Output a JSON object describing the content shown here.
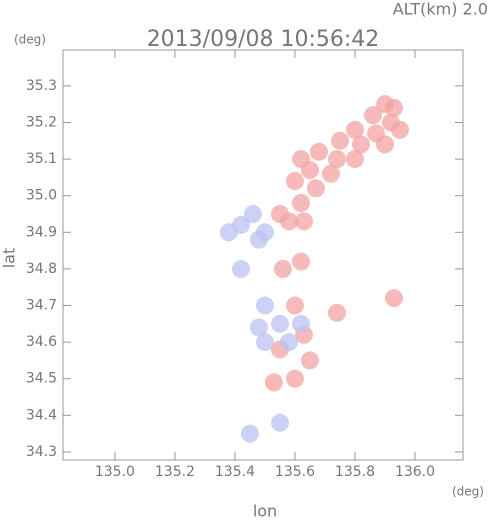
{
  "chart_data": {
    "type": "scatter",
    "title": "2013/09/08 10:56:42",
    "subtitle": "ALT(km) 2.0",
    "x_label": "lon",
    "y_label": "lat",
    "x_unit": "(deg)",
    "y_unit": "(deg)",
    "xlim": [
      134.827,
      136.16
    ],
    "ylim": [
      34.278,
      35.398
    ],
    "xticks": [
      {
        "value": 135,
        "label": "135.0"
      },
      135.2,
      135.4,
      135.6,
      135.8,
      {
        "value": 136,
        "label": "136.0"
      }
    ],
    "yticks": [
      34.3,
      34.4,
      34.5,
      34.6,
      34.7,
      34.8,
      34.9,
      {
        "value": 35,
        "label": "35.0"
      },
      35.1,
      35.2,
      35.3
    ],
    "series": [
      {
        "color": "#f3a3a3",
        "x": [
          135.9,
          135.93,
          135.86,
          135.92,
          135.8,
          135.87,
          135.95,
          135.75,
          135.82,
          135.9,
          135.68,
          135.74,
          135.8,
          135.62,
          135.65,
          135.72,
          135.6,
          135.67,
          135.62,
          135.58,
          135.63,
          135.55,
          135.74,
          135.93,
          135.56,
          135.62,
          135.6,
          135.63,
          135.55,
          135.6,
          135.53,
          135.65
        ],
        "values": [
          35.25,
          35.24,
          35.22,
          35.2,
          35.18,
          35.17,
          35.18,
          35.15,
          35.14,
          35.14,
          35.12,
          35.1,
          35.1,
          35.1,
          35.07,
          35.06,
          35.04,
          35.02,
          34.98,
          34.93,
          34.93,
          34.95,
          34.68,
          34.72,
          34.8,
          34.82,
          34.7,
          34.62,
          34.58,
          34.5,
          34.49,
          34.55
        ]
      },
      {
        "color": "#bcc2f2",
        "x": [
          135.42,
          135.46,
          135.5,
          135.38,
          135.48,
          135.42,
          135.5,
          135.48,
          135.55,
          135.58,
          135.5,
          135.62,
          135.45,
          135.55
        ],
        "values": [
          34.92,
          34.95,
          34.9,
          34.9,
          34.88,
          34.8,
          34.7,
          34.64,
          34.65,
          34.6,
          34.6,
          34.65,
          34.35,
          34.38
        ]
      }
    ]
  }
}
